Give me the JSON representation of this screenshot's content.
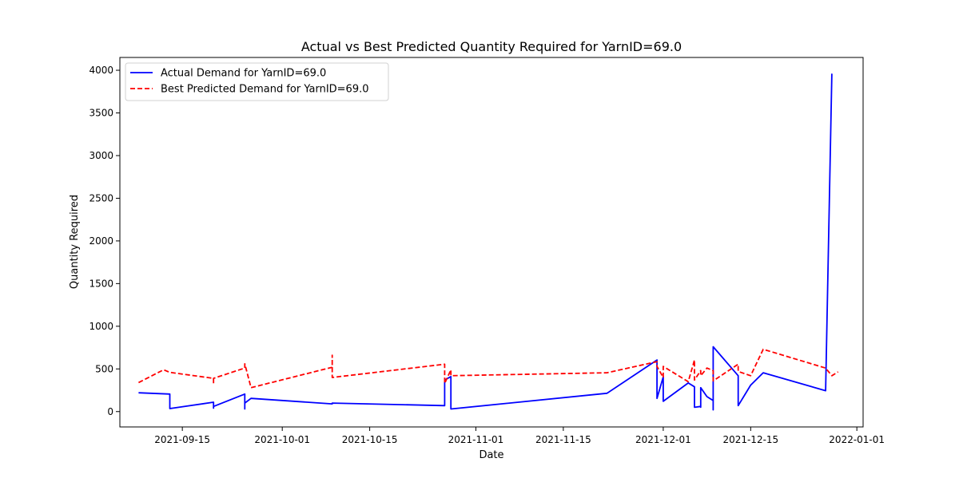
{
  "chart_data": {
    "type": "line",
    "title": "Actual vs Best Predicted Quantity Required for YarnID=69.0",
    "xlabel": "Date",
    "ylabel": "Quantity Required",
    "x_axis_type": "date",
    "xlim": [
      "2021-09-05",
      "2022-01-02"
    ],
    "ylim": [
      -180,
      4150
    ],
    "x_ticks": [
      {
        "date": "2021-09-15",
        "label": "2021-09-15"
      },
      {
        "date": "2021-10-01",
        "label": "2021-10-01"
      },
      {
        "date": "2021-10-15",
        "label": "2021-10-15"
      },
      {
        "date": "2021-11-01",
        "label": "2021-11-01"
      },
      {
        "date": "2021-11-15",
        "label": "2021-11-15"
      },
      {
        "date": "2021-12-01",
        "label": "2021-12-01"
      },
      {
        "date": "2021-12-15",
        "label": "2021-12-15"
      },
      {
        "date": "2022-01-01",
        "label": "2022-01-01"
      }
    ],
    "y_ticks": [
      0,
      500,
      1000,
      1500,
      2000,
      2500,
      3000,
      3500,
      4000
    ],
    "grid": false,
    "legend_position": "top-left",
    "series": [
      {
        "name": "Actual Demand for YarnID=69.0",
        "color": "#0000ff",
        "style": "solid",
        "points": [
          [
            "2021-09-08",
            220
          ],
          [
            "2021-09-13",
            205
          ],
          [
            "2021-09-13",
            35
          ],
          [
            "2021-09-20",
            110
          ],
          [
            "2021-09-20",
            40
          ],
          [
            "2021-09-20",
            60
          ],
          [
            "2021-09-25",
            205
          ],
          [
            "2021-09-25",
            30
          ],
          [
            "2021-09-25",
            100
          ],
          [
            "2021-09-26",
            155
          ],
          [
            "2021-10-09",
            90
          ],
          [
            "2021-10-09",
            100
          ],
          [
            "2021-10-27",
            70
          ],
          [
            "2021-10-27",
            370
          ],
          [
            "2021-10-28",
            410
          ],
          [
            "2021-10-28",
            30
          ],
          [
            "2021-11-22",
            215
          ],
          [
            "2021-11-30",
            605
          ],
          [
            "2021-11-30",
            155
          ],
          [
            "2021-12-01",
            405
          ],
          [
            "2021-12-01",
            120
          ],
          [
            "2021-12-05",
            335
          ],
          [
            "2021-12-06",
            290
          ],
          [
            "2021-12-06",
            50
          ],
          [
            "2021-12-07",
            60
          ],
          [
            "2021-12-07",
            280
          ],
          [
            "2021-12-07",
            50
          ],
          [
            "2021-12-07",
            280
          ],
          [
            "2021-12-08",
            175
          ],
          [
            "2021-12-09",
            130
          ],
          [
            "2021-12-09",
            20
          ],
          [
            "2021-12-09",
            760
          ],
          [
            "2021-12-13",
            420
          ],
          [
            "2021-12-13",
            70
          ],
          [
            "2021-12-15",
            310
          ],
          [
            "2021-12-17",
            455
          ],
          [
            "2021-12-27",
            245
          ],
          [
            "2021-12-28",
            3960
          ]
        ]
      },
      {
        "name": "Best Predicted Demand for YarnID=69.0",
        "color": "#ff0000",
        "style": "dashed",
        "points": [
          [
            "2021-09-08",
            340
          ],
          [
            "2021-09-12",
            490
          ],
          [
            "2021-09-13",
            460
          ],
          [
            "2021-09-20",
            390
          ],
          [
            "2021-09-20",
            330
          ],
          [
            "2021-09-20",
            390
          ],
          [
            "2021-09-25",
            510
          ],
          [
            "2021-09-25",
            560
          ],
          [
            "2021-09-26",
            280
          ],
          [
            "2021-10-09",
            520
          ],
          [
            "2021-10-09",
            660
          ],
          [
            "2021-10-09",
            400
          ],
          [
            "2021-10-27",
            555
          ],
          [
            "2021-10-27",
            330
          ],
          [
            "2021-10-28",
            490
          ],
          [
            "2021-10-28",
            420
          ],
          [
            "2021-11-22",
            455
          ],
          [
            "2021-11-30",
            585
          ],
          [
            "2021-11-30",
            530
          ],
          [
            "2021-12-01",
            400
          ],
          [
            "2021-12-01",
            530
          ],
          [
            "2021-12-05",
            350
          ],
          [
            "2021-12-06",
            605
          ],
          [
            "2021-12-06",
            370
          ],
          [
            "2021-12-07",
            480
          ],
          [
            "2021-12-07",
            420
          ],
          [
            "2021-12-08",
            510
          ],
          [
            "2021-12-09",
            480
          ],
          [
            "2021-12-09",
            360
          ],
          [
            "2021-12-13",
            555
          ],
          [
            "2021-12-13",
            470
          ],
          [
            "2021-12-15",
            420
          ],
          [
            "2021-12-17",
            730
          ],
          [
            "2021-12-27",
            510
          ],
          [
            "2021-12-28",
            420
          ],
          [
            "2021-12-29",
            465
          ]
        ]
      }
    ]
  }
}
